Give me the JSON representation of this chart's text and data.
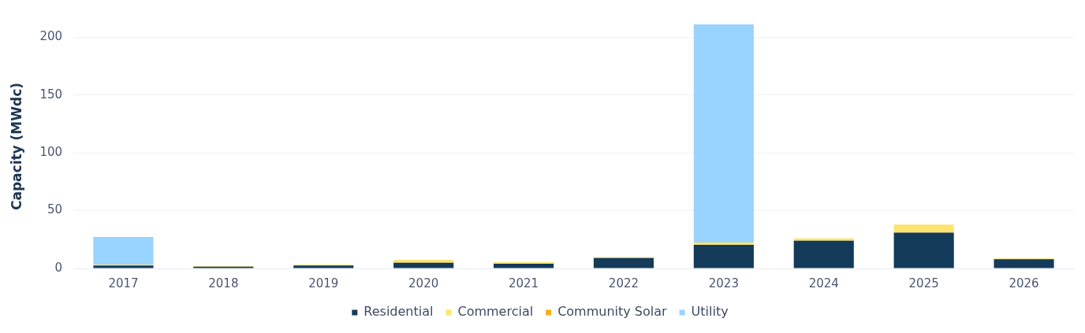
{
  "chart_data": {
    "type": "bar",
    "ylabel": "Capacity (MWdc)",
    "categories": [
      "2017",
      "2018",
      "2019",
      "2020",
      "2021",
      "2022",
      "2023",
      "2024",
      "2025",
      "2026"
    ],
    "stacked": true,
    "ylim": [
      0,
      211
    ],
    "yticks": [
      0,
      50,
      100,
      150,
      200
    ],
    "grid": "y",
    "legend": "bottom",
    "series": [
      {
        "name": "Residential",
        "color": "#143a5a",
        "values": [
          2.5,
          1.5,
          2.5,
          5,
          4,
          9,
          20.5,
          24,
          31,
          8
        ]
      },
      {
        "name": "Commercial",
        "color": "#fde46f",
        "values": [
          0.7,
          0.5,
          0.7,
          2.5,
          1.5,
          0.8,
          2,
          2,
          7,
          0.6
        ]
      },
      {
        "name": "Community Solar",
        "color": "#f5b014",
        "values": [
          0,
          0,
          0,
          0,
          0,
          0,
          0,
          0,
          0,
          0
        ]
      },
      {
        "name": "Utility",
        "color": "#99d3ff",
        "values": [
          24,
          0,
          0,
          0,
          0,
          0,
          188.5,
          0,
          0,
          0
        ]
      }
    ]
  }
}
